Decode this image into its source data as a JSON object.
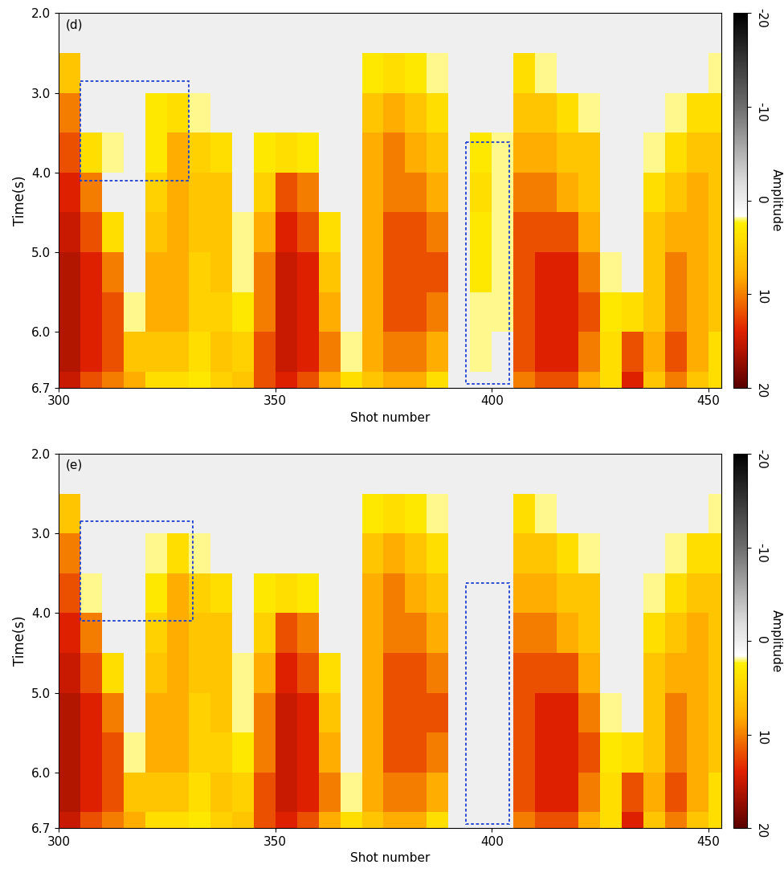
{
  "chart_data": [
    {
      "type": "heatmap",
      "panel_label": "(d)",
      "xlabel": "Shot number",
      "ylabel": "Time(s)",
      "colorbar_label": "Amplitude",
      "xlim": [
        300,
        453
      ],
      "xticks": [
        300,
        350,
        400,
        450
      ],
      "ylim": [
        6.7,
        2.0
      ],
      "yticks": [
        {
          "value": 2.0,
          "label": "2.0"
        },
        {
          "value": 3.0,
          "label": "3.0"
        },
        {
          "value": 4.0,
          "label": "4.0"
        },
        {
          "value": 5.0,
          "label": "5.0"
        },
        {
          "value": 6.0,
          "label": "6.0"
        },
        {
          "value": 6.7,
          "label": "6.7"
        }
      ],
      "colorbar_range": [
        -20,
        20
      ],
      "colorbar_ticks": [
        -20,
        -10,
        0,
        10,
        20
      ],
      "x_edges": [
        300,
        305,
        310,
        315,
        320,
        325,
        330,
        335,
        340,
        345,
        350,
        355,
        360,
        365,
        370,
        375,
        380,
        385,
        390,
        395,
        400,
        405,
        410,
        415,
        420,
        425,
        430,
        435,
        440,
        445,
        450,
        455
      ],
      "y_edges": [
        2.0,
        2.5,
        3.0,
        3.5,
        4.0,
        4.5,
        5.0,
        5.5,
        6.0,
        6.5,
        6.7
      ],
      "cells_by_shot": [
        [
          0,
          6,
          10,
          12,
          14,
          15,
          16,
          16,
          16,
          15
        ],
        [
          0,
          0,
          0,
          4,
          10,
          12,
          14,
          14,
          14,
          12
        ],
        [
          0,
          0,
          0,
          2,
          0,
          4,
          10,
          12,
          12,
          10
        ],
        [
          0,
          0,
          0,
          0,
          0,
          0,
          0,
          2,
          6,
          8
        ],
        [
          0,
          0,
          3,
          3,
          5,
          6,
          8,
          8,
          6,
          4
        ],
        [
          0,
          0,
          4,
          8,
          8,
          8,
          8,
          8,
          6,
          4
        ],
        [
          0,
          0,
          2,
          5,
          6,
          6,
          5,
          5,
          4,
          3
        ],
        [
          0,
          0,
          0,
          4,
          6,
          6,
          6,
          5,
          6,
          5
        ],
        [
          0,
          0,
          0,
          0,
          0,
          2,
          2,
          3,
          5,
          6
        ],
        [
          0,
          0,
          0,
          3,
          5,
          8,
          10,
          10,
          12,
          12
        ],
        [
          0,
          0,
          0,
          4,
          12,
          14,
          15,
          15,
          15,
          14
        ],
        [
          0,
          0,
          0,
          3,
          10,
          12,
          14,
          14,
          14,
          12
        ],
        [
          0,
          0,
          0,
          0,
          0,
          4,
          6,
          8,
          10,
          8
        ],
        [
          0,
          0,
          0,
          0,
          0,
          0,
          0,
          0,
          2,
          4
        ],
        [
          0,
          3,
          6,
          8,
          8,
          8,
          8,
          8,
          8,
          6
        ],
        [
          0,
          4,
          8,
          10,
          10,
          12,
          12,
          12,
          10,
          8
        ],
        [
          0,
          3,
          6,
          8,
          10,
          12,
          12,
          12,
          10,
          8
        ],
        [
          0,
          2,
          4,
          6,
          8,
          10,
          12,
          10,
          8,
          4
        ],
        [
          0,
          0,
          0,
          0,
          0,
          0,
          0,
          0,
          0,
          0
        ],
        [
          0,
          0,
          0,
          3,
          4,
          3,
          3,
          2,
          2,
          0
        ],
        [
          0,
          0,
          0,
          2,
          2,
          2,
          2,
          2,
          0,
          0
        ],
        [
          0,
          4,
          6,
          8,
          10,
          12,
          12,
          12,
          12,
          10
        ],
        [
          0,
          2,
          6,
          8,
          10,
          12,
          14,
          14,
          14,
          12
        ],
        [
          0,
          0,
          4,
          6,
          8,
          12,
          14,
          14,
          14,
          12
        ],
        [
          0,
          0,
          2,
          6,
          6,
          8,
          10,
          12,
          10,
          8
        ],
        [
          0,
          0,
          0,
          0,
          0,
          0,
          2,
          3,
          4,
          4
        ],
        [
          0,
          0,
          0,
          0,
          0,
          0,
          0,
          4,
          12,
          14
        ],
        [
          0,
          0,
          0,
          2,
          4,
          6,
          6,
          6,
          8,
          6
        ],
        [
          0,
          0,
          2,
          4,
          6,
          8,
          10,
          10,
          12,
          10
        ],
        [
          0,
          0,
          4,
          6,
          8,
          8,
          8,
          8,
          8,
          6
        ],
        [
          0,
          2,
          4,
          6,
          6,
          6,
          6,
          6,
          4,
          4
        ]
      ],
      "boxes": [
        {
          "x": [
            305,
            330
          ],
          "y": [
            2.85,
            4.1
          ]
        },
        {
          "x": [
            394,
            404
          ],
          "y": [
            3.62,
            6.65
          ]
        }
      ]
    },
    {
      "type": "heatmap",
      "panel_label": "(e)",
      "xlabel": "Shot number",
      "ylabel": "Time(s)",
      "colorbar_label": "Amplitude",
      "xlim": [
        300,
        453
      ],
      "xticks": [
        300,
        350,
        400,
        450
      ],
      "ylim": [
        6.7,
        2.0
      ],
      "yticks": [
        {
          "value": 2.0,
          "label": "2.0"
        },
        {
          "value": 3.0,
          "label": "3.0"
        },
        {
          "value": 4.0,
          "label": "4.0"
        },
        {
          "value": 5.0,
          "label": "5.0"
        },
        {
          "value": 6.0,
          "label": "6.0"
        },
        {
          "value": 6.7,
          "label": "6.7"
        }
      ],
      "colorbar_range": [
        -20,
        20
      ],
      "colorbar_ticks": [
        -20,
        -10,
        0,
        10,
        20
      ],
      "x_edges": [
        300,
        305,
        310,
        315,
        320,
        325,
        330,
        335,
        340,
        345,
        350,
        355,
        360,
        365,
        370,
        375,
        380,
        385,
        390,
        395,
        400,
        405,
        410,
        415,
        420,
        425,
        430,
        435,
        440,
        445,
        450,
        455
      ],
      "y_edges": [
        2.0,
        2.5,
        3.0,
        3.5,
        4.0,
        4.5,
        5.0,
        5.5,
        6.0,
        6.5,
        6.7
      ],
      "cells_by_shot": [
        [
          0,
          6,
          10,
          12,
          14,
          15,
          16,
          16,
          16,
          15
        ],
        [
          0,
          0,
          0,
          2,
          10,
          12,
          14,
          14,
          14,
          12
        ],
        [
          0,
          0,
          0,
          0,
          0,
          4,
          10,
          12,
          12,
          10
        ],
        [
          0,
          0,
          0,
          0,
          0,
          0,
          0,
          2,
          6,
          8
        ],
        [
          0,
          0,
          2,
          3,
          5,
          6,
          8,
          8,
          6,
          4
        ],
        [
          0,
          0,
          4,
          8,
          8,
          8,
          8,
          8,
          6,
          4
        ],
        [
          0,
          0,
          2,
          5,
          6,
          6,
          5,
          5,
          4,
          3
        ],
        [
          0,
          0,
          0,
          4,
          6,
          6,
          6,
          5,
          6,
          5
        ],
        [
          0,
          0,
          0,
          0,
          0,
          2,
          2,
          3,
          5,
          6
        ],
        [
          0,
          0,
          0,
          3,
          5,
          8,
          10,
          10,
          12,
          12
        ],
        [
          0,
          0,
          0,
          4,
          12,
          14,
          15,
          15,
          15,
          14
        ],
        [
          0,
          0,
          0,
          3,
          10,
          12,
          14,
          14,
          14,
          12
        ],
        [
          0,
          0,
          0,
          0,
          0,
          4,
          6,
          8,
          10,
          8
        ],
        [
          0,
          0,
          0,
          0,
          0,
          0,
          0,
          0,
          2,
          4
        ],
        [
          0,
          3,
          6,
          8,
          8,
          8,
          8,
          8,
          8,
          6
        ],
        [
          0,
          4,
          8,
          10,
          10,
          12,
          12,
          12,
          10,
          8
        ],
        [
          0,
          3,
          6,
          8,
          10,
          12,
          12,
          12,
          10,
          8
        ],
        [
          0,
          2,
          4,
          6,
          8,
          10,
          12,
          10,
          8,
          4
        ],
        [
          0,
          0,
          0,
          0,
          0,
          0,
          0,
          0,
          0,
          0
        ],
        [
          0,
          0,
          0,
          0,
          0,
          0,
          0,
          0,
          0,
          0
        ],
        [
          0,
          0,
          0,
          0,
          0,
          0,
          0,
          0,
          0,
          0
        ],
        [
          0,
          4,
          6,
          8,
          10,
          12,
          12,
          12,
          12,
          10
        ],
        [
          0,
          2,
          6,
          8,
          10,
          12,
          14,
          14,
          14,
          12
        ],
        [
          0,
          0,
          4,
          6,
          8,
          12,
          14,
          14,
          14,
          12
        ],
        [
          0,
          0,
          2,
          6,
          6,
          8,
          10,
          12,
          10,
          8
        ],
        [
          0,
          0,
          0,
          0,
          0,
          0,
          2,
          3,
          4,
          4
        ],
        [
          0,
          0,
          0,
          0,
          0,
          0,
          0,
          4,
          12,
          14
        ],
        [
          0,
          0,
          0,
          2,
          4,
          6,
          6,
          6,
          8,
          6
        ],
        [
          0,
          0,
          2,
          4,
          6,
          8,
          10,
          10,
          12,
          10
        ],
        [
          0,
          0,
          4,
          6,
          8,
          8,
          8,
          8,
          8,
          6
        ],
        [
          0,
          2,
          4,
          6,
          6,
          6,
          6,
          6,
          4,
          4
        ]
      ],
      "boxes": [
        {
          "x": [
            305,
            331
          ],
          "y": [
            2.85,
            4.1
          ]
        },
        {
          "x": [
            394,
            404
          ],
          "y": [
            3.62,
            6.65
          ]
        }
      ]
    }
  ]
}
